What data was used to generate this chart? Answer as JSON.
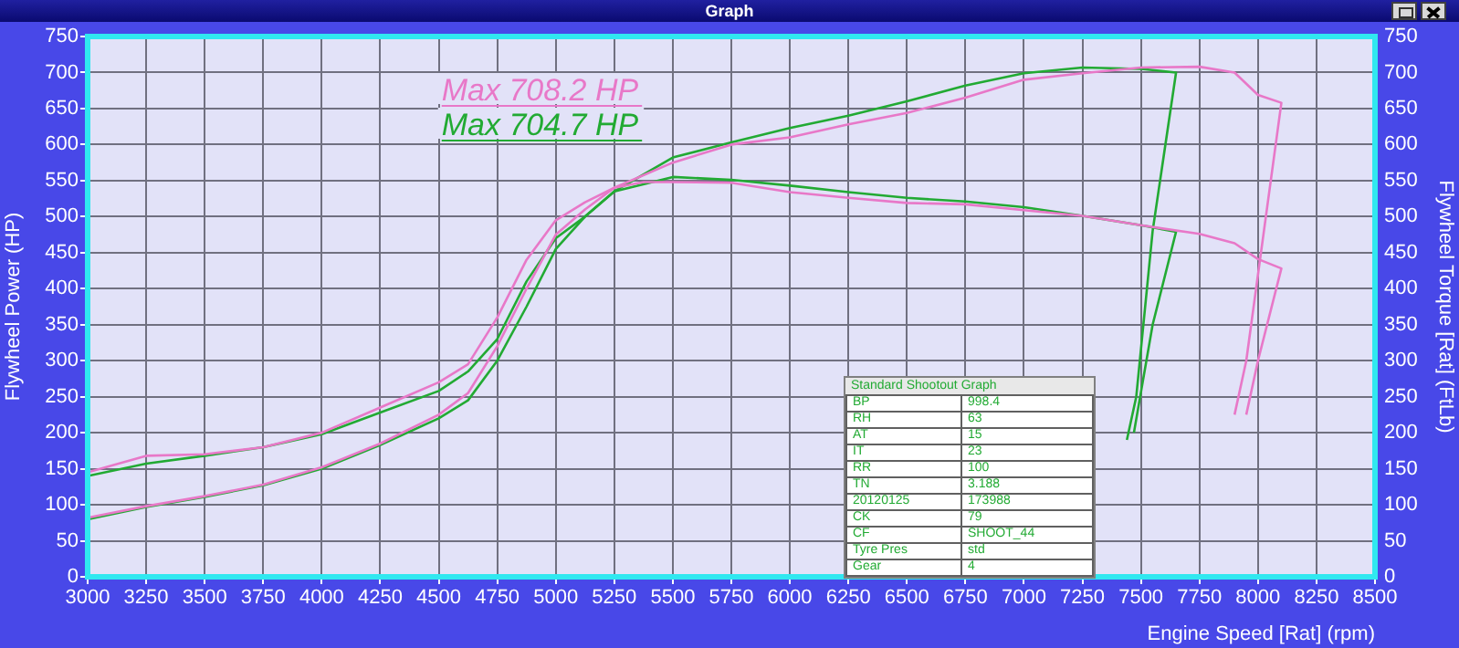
{
  "chart_data": {
    "type": "line",
    "title": "Graph",
    "xlabel": "Engine Speed [Rat] (rpm)",
    "ylabel": "Flywheel Power (HP)",
    "y2label": "Flywheel Torque [Rat] (FtLb)",
    "xlim": [
      3000,
      8500
    ],
    "xticks": [
      3000,
      3250,
      3500,
      3750,
      4000,
      4250,
      4500,
      4750,
      5000,
      5250,
      5500,
      5750,
      6000,
      6250,
      6500,
      6750,
      7000,
      7250,
      7500,
      7750,
      8000,
      8250,
      8500
    ],
    "ylim": [
      0,
      750
    ],
    "yticks": [
      0,
      50,
      100,
      150,
      200,
      250,
      300,
      350,
      400,
      450,
      500,
      550,
      600,
      650,
      700,
      750
    ],
    "y2lim": [
      0,
      750
    ],
    "y2ticks": [
      0,
      50,
      100,
      150,
      200,
      250,
      300,
      350,
      400,
      450,
      500,
      550,
      600,
      650,
      700,
      750
    ],
    "grid": true,
    "legend": false,
    "marker": "none",
    "line_style": "solid",
    "series": [
      {
        "color": "#e878c8",
        "x": [
          3000,
          3250,
          3500,
          3750,
          4000,
          4250,
          4500,
          4625,
          4750,
          4875,
          5000,
          5125,
          5250,
          5500,
          5750,
          6000,
          6250,
          6500,
          6750,
          7000,
          7250,
          7500,
          7750,
          7900,
          8000,
          8100,
          7950,
          7900
        ],
        "values": [
          82,
          98,
          112,
          128,
          152,
          185,
          225,
          255,
          320,
          400,
          475,
          510,
          540,
          575,
          600,
          610,
          628,
          644,
          665,
          690,
          699,
          707,
          708,
          700,
          669,
          658,
          300,
          225
        ]
      },
      {
        "color": "#e878c8",
        "axis": "y2",
        "x": [
          3000,
          3250,
          3500,
          3750,
          4000,
          4250,
          4500,
          4625,
          4750,
          4875,
          5000,
          5125,
          5250,
          5375,
          5500,
          5750,
          6000,
          6250,
          6500,
          6750,
          7000,
          7250,
          7500,
          7750,
          7900,
          8000,
          8100,
          8000,
          7950
        ],
        "values": [
          145,
          168,
          170,
          180,
          200,
          235,
          270,
          295,
          360,
          440,
          495,
          520,
          540,
          548,
          548,
          547,
          534,
          526,
          519,
          517,
          509,
          501,
          488,
          476,
          463,
          441,
          428,
          300,
          225
        ]
      },
      {
        "color": "#22aa33",
        "x": [
          3000,
          3250,
          3500,
          3750,
          4000,
          4250,
          4500,
          4625,
          4750,
          4875,
          5000,
          5125,
          5250,
          5500,
          5750,
          6000,
          6250,
          6500,
          6750,
          7000,
          7250,
          7500,
          7650,
          7550,
          7480,
          7440
        ],
        "values": [
          80,
          97,
          111,
          127,
          150,
          183,
          220,
          245,
          300,
          375,
          455,
          500,
          535,
          582,
          603,
          623,
          640,
          660,
          682,
          699,
          707,
          705,
          700,
          480,
          250,
          190
        ]
      },
      {
        "color": "#22aa33",
        "axis": "y2",
        "x": [
          3000,
          3250,
          3500,
          3750,
          4000,
          4250,
          4500,
          4625,
          4750,
          4875,
          5000,
          5125,
          5250,
          5500,
          5750,
          6000,
          6250,
          6500,
          6750,
          7000,
          7250,
          7500,
          7650,
          7550,
          7470
        ],
        "values": [
          140,
          157,
          168,
          180,
          198,
          228,
          258,
          285,
          330,
          410,
          470,
          500,
          535,
          555,
          551,
          543,
          534,
          526,
          521,
          513,
          501,
          488,
          479,
          350,
          200
        ]
      }
    ],
    "annotations": [
      "Max 708.2 HP",
      "Max 704.7 HP",
      "Standard Shootout Graph",
      "BP",
      "998.4",
      "RH",
      "63",
      "AT",
      "15",
      "IT",
      "23",
      "RR",
      "100",
      "TN",
      "3.188",
      "20120125",
      "173988",
      "CK",
      "79",
      "CF",
      "SHOOT_44",
      "Tyre Pres",
      "std",
      "Gear",
      "4"
    ]
  }
}
